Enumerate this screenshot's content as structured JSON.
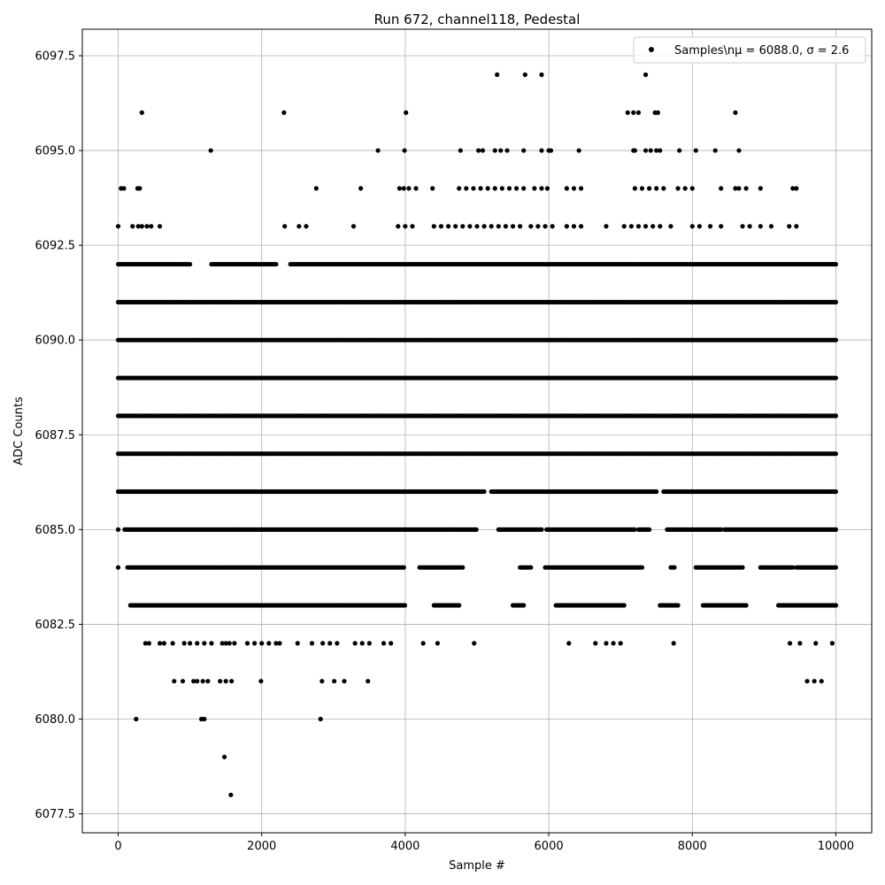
{
  "chart_data": {
    "type": "scatter",
    "title": "Run 672, channel118, Pedestal",
    "xlabel": "Sample #",
    "ylabel": "ADC Counts",
    "xlim": [
      -500,
      10500
    ],
    "ylim": [
      6077.0,
      6098.2
    ],
    "xticks": [
      0,
      2000,
      4000,
      6000,
      8000,
      10000
    ],
    "yticks": [
      6077.5,
      6080.0,
      6082.5,
      6085.0,
      6087.5,
      6090.0,
      6092.5,
      6095.0,
      6097.5
    ],
    "xtick_labels": [
      "0",
      "2000",
      "4000",
      "6000",
      "8000",
      "10000"
    ],
    "ytick_labels": [
      "6077.5",
      "6080.0",
      "6082.5",
      "6085.0",
      "6087.5",
      "6090.0",
      "6092.5",
      "6095.0",
      "6097.5"
    ],
    "grid": true,
    "legend_position": "top-right",
    "marker_color": "#000000",
    "series": [
      {
        "name": "Samples\\nμ = 6088.0, σ = 2.6",
        "dense_levels": [
          {
            "y": 6083,
            "x_ranges": [
              [
                170,
                4000
              ],
              [
                4400,
                4750
              ],
              [
                5500,
                5650
              ],
              [
                6100,
                7050
              ],
              [
                7550,
                7800
              ],
              [
                8150,
                8750
              ],
              [
                9200,
                10000
              ]
            ]
          },
          {
            "y": 6084,
            "x_ranges": [
              [
                0,
                0
              ],
              [
                130,
                4000
              ],
              [
                4200,
                4800
              ],
              [
                5600,
                5750
              ],
              [
                5950,
                7300
              ],
              [
                7700,
                7750
              ],
              [
                8050,
                8700
              ],
              [
                8950,
                9400
              ],
              [
                9450,
                10000
              ]
            ]
          },
          {
            "y": 6085,
            "x_ranges": [
              [
                0,
                0
              ],
              [
                90,
                5000
              ],
              [
                5300,
                5900
              ],
              [
                5970,
                7200
              ],
              [
                7250,
                7400
              ],
              [
                7650,
                8400
              ],
              [
                8450,
                10000
              ]
            ]
          },
          {
            "y": 6086,
            "x_ranges": [
              [
                0,
                5100
              ],
              [
                5200,
                7500
              ],
              [
                7600,
                10000
              ]
            ]
          },
          {
            "y": 6087,
            "x_ranges": [
              [
                0,
                10000
              ]
            ]
          },
          {
            "y": 6088,
            "x_ranges": [
              [
                0,
                10000
              ]
            ]
          },
          {
            "y": 6089,
            "x_ranges": [
              [
                0,
                10000
              ]
            ]
          },
          {
            "y": 6090,
            "x_ranges": [
              [
                0,
                10000
              ]
            ]
          },
          {
            "y": 6091,
            "x_ranges": [
              [
                0,
                10000
              ]
            ]
          },
          {
            "y": 6092,
            "x_ranges": [
              [
                0,
                1000
              ],
              [
                1300,
                2200
              ],
              [
                2400,
                10000
              ]
            ]
          }
        ],
        "sparse_points": [
          [
            250,
            6080
          ],
          [
            1160,
            6080
          ],
          [
            1200,
            6080
          ],
          [
            2820,
            6080
          ],
          [
            1480,
            6079
          ],
          [
            1570,
            6078
          ],
          [
            780,
            6081
          ],
          [
            900,
            6081
          ],
          [
            1050,
            6081
          ],
          [
            1100,
            6081
          ],
          [
            1180,
            6081
          ],
          [
            1250,
            6081
          ],
          [
            1420,
            6081
          ],
          [
            1500,
            6081
          ],
          [
            1580,
            6081
          ],
          [
            1990,
            6081
          ],
          [
            2840,
            6081
          ],
          [
            3010,
            6081
          ],
          [
            3150,
            6081
          ],
          [
            3480,
            6081
          ],
          [
            9600,
            6081
          ],
          [
            9700,
            6081
          ],
          [
            9800,
            6081
          ],
          [
            380,
            6082
          ],
          [
            430,
            6082
          ],
          [
            580,
            6082
          ],
          [
            640,
            6082
          ],
          [
            760,
            6082
          ],
          [
            920,
            6082
          ],
          [
            1000,
            6082
          ],
          [
            1100,
            6082
          ],
          [
            1200,
            6082
          ],
          [
            1300,
            6082
          ],
          [
            1450,
            6082
          ],
          [
            1500,
            6082
          ],
          [
            1550,
            6082
          ],
          [
            1620,
            6082
          ],
          [
            1800,
            6082
          ],
          [
            1900,
            6082
          ],
          [
            2000,
            6082
          ],
          [
            2100,
            6082
          ],
          [
            2200,
            6082
          ],
          [
            2250,
            6082
          ],
          [
            2500,
            6082
          ],
          [
            2700,
            6082
          ],
          [
            2850,
            6082
          ],
          [
            2950,
            6082
          ],
          [
            3050,
            6082
          ],
          [
            3300,
            6082
          ],
          [
            3400,
            6082
          ],
          [
            3500,
            6082
          ],
          [
            3700,
            6082
          ],
          [
            3800,
            6082
          ],
          [
            4250,
            6082
          ],
          [
            4450,
            6082
          ],
          [
            4960,
            6082
          ],
          [
            6280,
            6082
          ],
          [
            6650,
            6082
          ],
          [
            6800,
            6082
          ],
          [
            6900,
            6082
          ],
          [
            7000,
            6082
          ],
          [
            7740,
            6082
          ],
          [
            9360,
            6082
          ],
          [
            9500,
            6082
          ],
          [
            9720,
            6082
          ],
          [
            9950,
            6082
          ],
          [
            0,
            6093
          ],
          [
            200,
            6093
          ],
          [
            280,
            6093
          ],
          [
            330,
            6093
          ],
          [
            400,
            6093
          ],
          [
            460,
            6093
          ],
          [
            580,
            6093
          ],
          [
            2320,
            6093
          ],
          [
            2520,
            6093
          ],
          [
            2620,
            6093
          ],
          [
            3280,
            6093
          ],
          [
            3900,
            6093
          ],
          [
            4000,
            6093
          ],
          [
            4100,
            6093
          ],
          [
            4400,
            6093
          ],
          [
            4500,
            6093
          ],
          [
            4600,
            6093
          ],
          [
            4700,
            6093
          ],
          [
            4800,
            6093
          ],
          [
            4900,
            6093
          ],
          [
            5000,
            6093
          ],
          [
            5100,
            6093
          ],
          [
            5200,
            6093
          ],
          [
            5300,
            6093
          ],
          [
            5400,
            6093
          ],
          [
            5500,
            6093
          ],
          [
            5600,
            6093
          ],
          [
            5750,
            6093
          ],
          [
            5850,
            6093
          ],
          [
            5950,
            6093
          ],
          [
            6050,
            6093
          ],
          [
            6250,
            6093
          ],
          [
            6350,
            6093
          ],
          [
            6450,
            6093
          ],
          [
            6800,
            6093
          ],
          [
            7050,
            6093
          ],
          [
            7150,
            6093
          ],
          [
            7250,
            6093
          ],
          [
            7350,
            6093
          ],
          [
            7450,
            6093
          ],
          [
            7550,
            6093
          ],
          [
            7700,
            6093
          ],
          [
            8000,
            6093
          ],
          [
            8100,
            6093
          ],
          [
            8250,
            6093
          ],
          [
            8400,
            6093
          ],
          [
            8700,
            6093
          ],
          [
            8800,
            6093
          ],
          [
            8950,
            6093
          ],
          [
            9100,
            6093
          ],
          [
            9350,
            6093
          ],
          [
            9450,
            6093
          ],
          [
            40,
            6094
          ],
          [
            80,
            6094
          ],
          [
            270,
            6094
          ],
          [
            300,
            6094
          ],
          [
            2760,
            6094
          ],
          [
            3380,
            6094
          ],
          [
            3920,
            6094
          ],
          [
            3980,
            6094
          ],
          [
            4050,
            6094
          ],
          [
            4150,
            6094
          ],
          [
            4380,
            6094
          ],
          [
            4750,
            6094
          ],
          [
            4850,
            6094
          ],
          [
            4950,
            6094
          ],
          [
            5050,
            6094
          ],
          [
            5150,
            6094
          ],
          [
            5250,
            6094
          ],
          [
            5350,
            6094
          ],
          [
            5450,
            6094
          ],
          [
            5550,
            6094
          ],
          [
            5650,
            6094
          ],
          [
            5800,
            6094
          ],
          [
            5900,
            6094
          ],
          [
            5980,
            6094
          ],
          [
            6250,
            6094
          ],
          [
            6350,
            6094
          ],
          [
            6450,
            6094
          ],
          [
            7200,
            6094
          ],
          [
            7300,
            6094
          ],
          [
            7400,
            6094
          ],
          [
            7500,
            6094
          ],
          [
            7600,
            6094
          ],
          [
            7800,
            6094
          ],
          [
            7900,
            6094
          ],
          [
            8000,
            6094
          ],
          [
            8400,
            6094
          ],
          [
            8600,
            6094
          ],
          [
            8650,
            6094
          ],
          [
            8750,
            6094
          ],
          [
            8950,
            6094
          ],
          [
            9400,
            6094
          ],
          [
            9450,
            6094
          ],
          [
            1290,
            6095
          ],
          [
            3620,
            6095
          ],
          [
            3990,
            6095
          ],
          [
            4770,
            6095
          ],
          [
            5020,
            6095
          ],
          [
            5080,
            6095
          ],
          [
            5250,
            6095
          ],
          [
            5330,
            6095
          ],
          [
            5420,
            6095
          ],
          [
            5650,
            6095
          ],
          [
            5900,
            6095
          ],
          [
            6000,
            6095
          ],
          [
            6030,
            6095
          ],
          [
            6420,
            6095
          ],
          [
            7180,
            6095
          ],
          [
            7200,
            6095
          ],
          [
            7350,
            6095
          ],
          [
            7420,
            6095
          ],
          [
            7500,
            6095
          ],
          [
            7550,
            6095
          ],
          [
            7820,
            6095
          ],
          [
            8050,
            6095
          ],
          [
            8320,
            6095
          ],
          [
            8650,
            6095
          ],
          [
            330,
            6096
          ],
          [
            2310,
            6096
          ],
          [
            4010,
            6096
          ],
          [
            7100,
            6096
          ],
          [
            7180,
            6096
          ],
          [
            7250,
            6096
          ],
          [
            7480,
            6096
          ],
          [
            7520,
            6096
          ],
          [
            8600,
            6096
          ],
          [
            5280,
            6097
          ],
          [
            5670,
            6097
          ],
          [
            5900,
            6097
          ],
          [
            7350,
            6097
          ]
        ]
      }
    ]
  }
}
